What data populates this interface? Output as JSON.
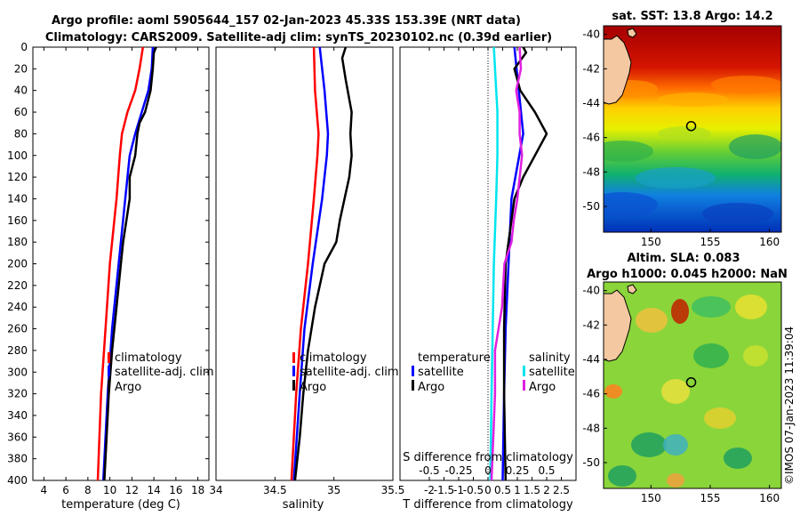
{
  "header": {
    "title_line1": "Argo profile: aoml 5905644_157 02-Jan-2023 45.33S 153.39E (NRT data)",
    "title_line2": "Climatology: CARS2009. Satellite-adj clim: synTS_20230102.nc (0.39d earlier)"
  },
  "colors": {
    "climatology": "#ff0000",
    "satellite": "#0000ff",
    "argo": "#000000",
    "sal_satellite": "#00e5ee",
    "sal_argo": "#e020e0"
  },
  "chart_data": [
    {
      "type": "line",
      "name": "temperature",
      "xlabel": "temperature (deg C)",
      "ylabel": "depth",
      "xlim": [
        3,
        19
      ],
      "ylim": [
        0,
        400
      ],
      "y_inverted": true,
      "xticks": [
        "4",
        "6",
        "8",
        "10",
        "12",
        "14",
        "16",
        "18"
      ],
      "yticks": [
        "0",
        "20",
        "40",
        "60",
        "80",
        "100",
        "120",
        "140",
        "160",
        "180",
        "200",
        "220",
        "240",
        "260",
        "280",
        "300",
        "320",
        "340",
        "360",
        "380",
        "400"
      ],
      "legend": [
        "climatology",
        "satellite-adj. clim",
        "Argo"
      ],
      "series": [
        {
          "name": "climatology",
          "depth": [
            0,
            20,
            40,
            60,
            80,
            100,
            140,
            200,
            260,
            320,
            400
          ],
          "values": [
            13.0,
            12.7,
            12.3,
            11.6,
            11.1,
            10.9,
            10.6,
            10.0,
            9.6,
            9.2,
            8.9
          ]
        },
        {
          "name": "satellite-adj. clim",
          "depth": [
            0,
            20,
            40,
            60,
            80,
            100,
            140,
            200,
            260,
            320,
            400
          ],
          "values": [
            13.9,
            13.8,
            13.5,
            12.9,
            12.3,
            11.8,
            11.4,
            10.8,
            10.2,
            9.8,
            9.4
          ]
        },
        {
          "name": "Argo",
          "depth": [
            0,
            5,
            20,
            40,
            60,
            70,
            80,
            100,
            120,
            140,
            160,
            180,
            200,
            240,
            280,
            320,
            360,
            400
          ],
          "values": [
            14.2,
            14.0,
            13.9,
            13.7,
            13.2,
            12.7,
            12.5,
            12.3,
            11.8,
            11.8,
            11.5,
            11.2,
            11.0,
            10.6,
            10.2,
            9.9,
            9.7,
            9.5
          ]
        }
      ]
    },
    {
      "type": "line",
      "name": "salinity",
      "xlabel": "salinity",
      "ylabel": "depth",
      "xlim": [
        34,
        35.5
      ],
      "ylim": [
        0,
        400
      ],
      "y_inverted": true,
      "xticks": [
        "34",
        "34.5",
        "35",
        "35.5"
      ],
      "legend": [
        "climatology",
        "satellite-adj. clim",
        "Argo"
      ],
      "series": [
        {
          "name": "climatology",
          "depth": [
            0,
            40,
            80,
            100,
            140,
            200,
            260,
            320,
            400
          ],
          "values": [
            34.83,
            34.84,
            34.87,
            34.86,
            34.83,
            34.78,
            34.72,
            34.68,
            34.64
          ]
        },
        {
          "name": "satellite-adj. clim",
          "depth": [
            0,
            20,
            40,
            80,
            100,
            140,
            200,
            260,
            320,
            400
          ],
          "values": [
            34.88,
            34.9,
            34.92,
            34.95,
            34.94,
            34.9,
            34.82,
            34.75,
            34.71,
            34.66
          ]
        },
        {
          "name": "Argo",
          "depth": [
            0,
            10,
            30,
            60,
            80,
            100,
            120,
            140,
            160,
            180,
            200,
            240,
            280,
            320,
            360,
            400
          ],
          "values": [
            35.1,
            35.07,
            35.1,
            35.15,
            35.14,
            35.15,
            35.13,
            35.09,
            35.05,
            35.02,
            34.92,
            34.84,
            34.78,
            34.74,
            34.71,
            34.67
          ]
        }
      ]
    },
    {
      "type": "line",
      "name": "difference",
      "xlabel": "T difference from climatology",
      "xlabel_top": "S difference from climatology",
      "xlim": [
        -3,
        3
      ],
      "xlim_top": [
        -0.75,
        0.75
      ],
      "ylim": [
        0,
        400
      ],
      "y_inverted": true,
      "xticks": [
        "-2",
        "-1.5",
        "-1",
        "-0.5",
        "0",
        "0.5",
        "1",
        "1.5",
        "2",
        "2.5"
      ],
      "xticks_top": [
        "-0.5",
        "-0.25",
        "0",
        "0.25",
        "0.5"
      ],
      "legend_temperature_title": "temperature",
      "legend_salinity_title": "salinity",
      "legend_temperature": [
        "satellite",
        "Argo"
      ],
      "legend_salinity": [
        "satellite",
        "Argo"
      ],
      "series": [
        {
          "name": "T satellite",
          "axis": "T",
          "depth": [
            0,
            80,
            140,
            200,
            260,
            320,
            400
          ],
          "values": [
            0.9,
            1.2,
            0.8,
            0.7,
            0.6,
            0.55,
            0.5
          ]
        },
        {
          "name": "T Argo",
          "axis": "T",
          "depth": [
            0,
            5,
            20,
            40,
            60,
            80,
            100,
            120,
            140,
            180,
            200,
            260,
            320,
            400
          ],
          "values": [
            1.2,
            1.3,
            0.9,
            1.1,
            1.6,
            2.0,
            1.6,
            1.2,
            0.9,
            0.7,
            0.6,
            0.55,
            0.55,
            0.6
          ]
        },
        {
          "name": "S satellite",
          "axis": "S",
          "depth": [
            0,
            20,
            60,
            100,
            140,
            200,
            260,
            320,
            400
          ],
          "values": [
            0.05,
            0.06,
            0.08,
            0.08,
            0.07,
            0.05,
            0.04,
            0.03,
            0.02
          ]
        },
        {
          "name": "S Argo",
          "axis": "S",
          "depth": [
            0,
            20,
            40,
            60,
            80,
            100,
            140,
            160,
            180,
            200,
            240,
            280,
            320,
            400
          ],
          "values": [
            0.27,
            0.28,
            0.24,
            0.27,
            0.27,
            0.29,
            0.25,
            0.22,
            0.2,
            0.14,
            0.12,
            0.06,
            0.06,
            0.03
          ]
        }
      ]
    },
    {
      "type": "heatmap",
      "name": "sst_map",
      "title": "sat. SST: 13.8 Argo: 14.2",
      "xlim": [
        146,
        161
      ],
      "ylim": [
        -51.5,
        -39.5
      ],
      "xticks": [
        "150",
        "155",
        "160"
      ],
      "yticks": [
        "-40",
        "-42",
        "-44",
        "-46",
        "-48",
        "-50"
      ],
      "marker": {
        "lon": 153.39,
        "lat": -45.33
      }
    },
    {
      "type": "heatmap",
      "name": "sla_map",
      "title_line1": "Altim. SLA: 0.083",
      "title_line2": "Argo h1000: 0.045 h2000: NaN",
      "xlim": [
        146,
        161
      ],
      "ylim": [
        -51.5,
        -39.5
      ],
      "xticks": [
        "150",
        "155",
        "160"
      ],
      "yticks": [
        "-40",
        "-42",
        "-44",
        "-46",
        "-48",
        "-50"
      ],
      "marker": {
        "lon": 153.39,
        "lat": -45.33
      }
    }
  ],
  "credit": "©IMOS 07-Jan-2023 11:39:04"
}
